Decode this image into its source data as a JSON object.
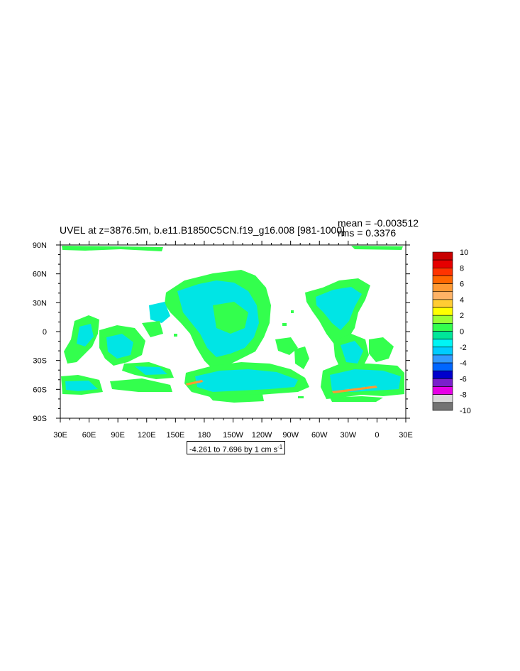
{
  "title": "UVEL at z=3876.5m, b.e11.B1850C5CN.f19_g16.008 [981-1000]",
  "stats": {
    "mean": "mean = -0.003512",
    "rms": "rms = 0.3376"
  },
  "range_label": {
    "text": "-4.261 to 7.696 by 1 cm s",
    "exponent": "-1"
  },
  "map": {
    "lon_labels": [
      "30E",
      "60E",
      "90E",
      "120E",
      "150E",
      "180",
      "150W",
      "120W",
      "90W",
      "60W",
      "30W",
      "0",
      "30E"
    ],
    "lat_labels": [
      "90N",
      "60N",
      "30N",
      "0",
      "30S",
      "60S",
      "90S"
    ],
    "background_color": "#ffffff",
    "fill_colors": {
      "green": "#33ff4d",
      "cyan": "#00e5e5",
      "orange": "#ff9933"
    }
  },
  "colorbar": {
    "labels": [
      "10",
      "8",
      "6",
      "4",
      "2",
      "0",
      "-2",
      "-4",
      "-6",
      "-8",
      "-10"
    ],
    "colors": [
      "#c80000",
      "#e60000",
      "#ff3300",
      "#ff6600",
      "#ff9933",
      "#ffb366",
      "#ffcc33",
      "#ffff00",
      "#99ff33",
      "#33ff4d",
      "#00e699",
      "#00f5f5",
      "#00ccff",
      "#3399ff",
      "#0066ff",
      "#0000cc",
      "#7a1fcc",
      "#e600e6",
      "#d9d9d9",
      "#737373"
    ]
  }
}
